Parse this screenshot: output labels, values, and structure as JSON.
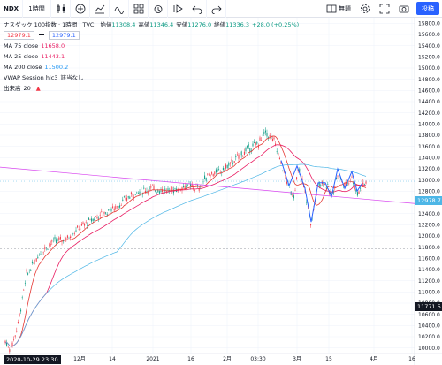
{
  "toolbar": {
    "symbol": "NDX",
    "interval": "1時間",
    "publish_label": "投稿",
    "icons_left": [
      "candles-icon",
      "add-indicator-icon",
      "compare-icon",
      "indicators-icon",
      "templates-icon",
      "alert-icon",
      "replay-icon",
      "undo-icon",
      "redo-icon"
    ],
    "icons_right": [
      "layout-icon",
      "settings-icon",
      "fullscreen-icon",
      "snapshot-icon"
    ]
  },
  "legend": {
    "title": "ナスダック 100指数 · 1時間 · TVC",
    "ohlc": [
      {
        "label": "始値",
        "value": "11308.4"
      },
      {
        "label": "高値",
        "value": "11346.4"
      },
      {
        "label": "安値",
        "value": "11276.0"
      },
      {
        "label": "終値",
        "value": "11336.3"
      }
    ],
    "change": "+28.0 (+0.25%)",
    "sell_price": "12979.1",
    "buy_price": "12979.1",
    "indicators": [
      {
        "name": "MA 75 close",
        "value": "11658.0",
        "color": "#e91e63"
      },
      {
        "name": "MA 25 close",
        "value": "11443.1",
        "color": "#e91e63"
      },
      {
        "name": "MA 200 close",
        "value": "11500.2",
        "color": "#2196f3"
      },
      {
        "name": "VWAP Session hlc3",
        "value": "該当なし",
        "color": "#131722"
      },
      {
        "name": "出来高",
        "value": "20",
        "color": "#131722"
      }
    ],
    "unit_label": "無題"
  },
  "colors": {
    "up": "#089981",
    "down": "#f23645",
    "ma_red": "#e53935",
    "ma_pink": "#e91e63",
    "ma_blue": "#4db6e6",
    "trend_pink": "#d946ef",
    "pattern_blue": "#2962ff",
    "brand": "#2962ff"
  },
  "price_axis": {
    "ticks": [
      "15800.0",
      "15600.0",
      "15400.0",
      "15200.0",
      "15000.0",
      "14800.0",
      "14600.0",
      "14400.0",
      "14200.0",
      "14000.0",
      "13800.0",
      "13600.0",
      "13400.0",
      "13200.0",
      "13000.0",
      "12800.0",
      "12600.0",
      "12400.0",
      "12200.0",
      "12000.0",
      "11800.0",
      "11600.0",
      "11400.0",
      "11200.0",
      "11000.0",
      "10800.0",
      "10600.0",
      "10400.0",
      "10200.0",
      "10000.0"
    ],
    "last_price_label": "12978.7",
    "crosshair_price_label": "11771.5",
    "range": [
      9900,
      15900
    ]
  },
  "time_axis": {
    "ticks": [
      "12月",
      "14",
      "2021",
      "16",
      "2月",
      "03:30",
      "3月",
      "15",
      "4月",
      "16"
    ],
    "crosshair_label": "2020-10-29  23:30"
  },
  "chart_data": {
    "type": "line",
    "instrument": "NDX",
    "interval": "1時間",
    "series": [
      {
        "name": "MA 25 close",
        "values": [
          11443.1
        ]
      },
      {
        "name": "MA 75 close",
        "values": [
          11658.0
        ]
      },
      {
        "name": "MA 200 close",
        "values": [
          11500.2
        ]
      }
    ],
    "last_price": 12978.7,
    "ylim": [
      9900,
      15900
    ]
  }
}
